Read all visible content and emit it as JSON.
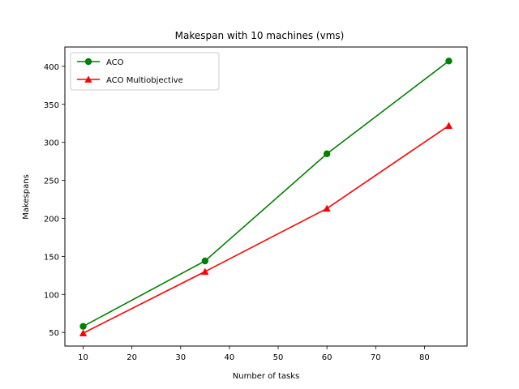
{
  "chart_data": {
    "type": "line",
    "title": "Makespan with 10 machines (vms)",
    "xlabel": "Number of tasks",
    "ylabel": "Makespans",
    "x": [
      10,
      35,
      60,
      85
    ],
    "xlim": [
      6.25,
      88.75
    ],
    "ylim": [
      32.05,
      425.45
    ],
    "xticks": [
      10,
      20,
      30,
      40,
      50,
      60,
      70,
      80
    ],
    "yticks": [
      50,
      100,
      150,
      200,
      250,
      300,
      350,
      400
    ],
    "grid": false,
    "legend_position": "top-left",
    "series": [
      {
        "name": "ACO",
        "values": [
          58,
          144,
          285,
          407
        ],
        "color": "#008000",
        "marker": "circle"
      },
      {
        "name": "ACO Multiobjective",
        "values": [
          49,
          130,
          213,
          322
        ],
        "color": "#ff0000",
        "marker": "triangle"
      }
    ]
  }
}
